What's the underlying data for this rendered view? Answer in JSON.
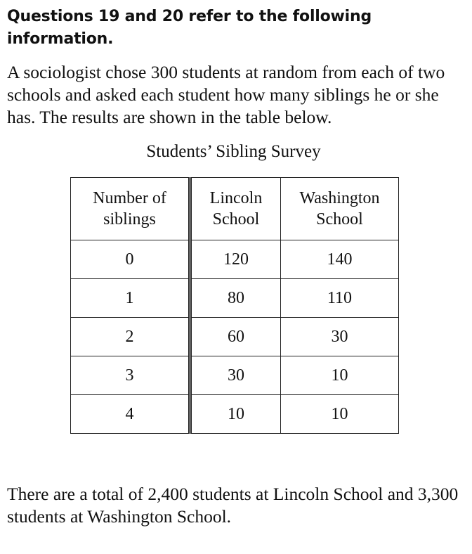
{
  "heading": "Questions 19 and 20 refer to the following information.",
  "intro": "A sociologist chose 300 students at random from each of two schools and asked each student how many siblings he or she has.  The results are shown in the table below.",
  "table": {
    "title": "Students’ Sibling Survey",
    "headers": [
      "Number of siblings",
      "Lincoln School",
      "Washington School"
    ],
    "rows": [
      [
        "0",
        "120",
        "140"
      ],
      [
        "1",
        "80",
        "110"
      ],
      [
        "2",
        "60",
        "30"
      ],
      [
        "3",
        "30",
        "10"
      ],
      [
        "4",
        "10",
        "10"
      ]
    ]
  },
  "outro": "There are a total of 2,400 students at Lincoln School and 3,300 students at Washington School."
}
